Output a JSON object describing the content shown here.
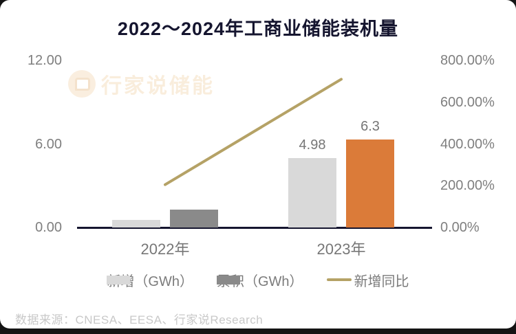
{
  "page": {
    "title": "2022～2024年工商业储能装机量",
    "watermark": "行家说储能",
    "source": "数据来源：CNESA、EESA、行家说Research"
  },
  "colors": {
    "title": "#15152F",
    "axis_line": "#15152F",
    "axis_text": "#7F7F7F",
    "bar_new": "#D9D9D9",
    "bar_cumulative": "#8A8A8A",
    "bar_cumulative_highlight": "#DB7B39",
    "growth_line": "#B5A266",
    "bar_value_text": "#767676",
    "source_text": "#C8C8C8",
    "watermark_text": "#F9EDDC",
    "card_background": "#FFFFFF",
    "page_background": "#141414"
  },
  "chart_data": {
    "type": "bar",
    "subtype": "grouped bars + line on secondary axis",
    "title": "2022～2024年工商业储能装机量",
    "categories": [
      "2022年",
      "2023年"
    ],
    "series": [
      {
        "key": "new",
        "name": "新增（GWh）",
        "type": "bar",
        "axis": "left",
        "values": [
          0.55,
          4.98
        ],
        "labels": [
          null,
          "4.98"
        ],
        "color": "#D9D9D9"
      },
      {
        "key": "cumulative",
        "name": "累积（GWh）",
        "type": "bar",
        "axis": "left",
        "values": [
          1.3,
          6.3
        ],
        "labels": [
          null,
          "6.3"
        ],
        "colors": [
          "#8A8A8A",
          "#DB7B39"
        ]
      },
      {
        "key": "growth",
        "name": "新增同比",
        "type": "line",
        "axis": "right",
        "values_pct": [
          205,
          710
        ],
        "labels": [
          null,
          null
        ],
        "color": "#B5A266"
      }
    ],
    "left_axis": {
      "min": 0,
      "max": 12,
      "ticks": [
        "12.00",
        "6.00",
        "0.00"
      ]
    },
    "right_axis": {
      "min": 0,
      "max": 800,
      "ticks": [
        "800.00%",
        "600.00%",
        "400.00%",
        "200.00%",
        "0.00%"
      ]
    },
    "grid": false,
    "legend_position": "bottom"
  },
  "legend": [
    {
      "label": "新增（GWh）",
      "swatch": "bar",
      "color": "#D9D9D9"
    },
    {
      "label": "累积（GWh）",
      "swatch": "bar",
      "color": "#8A8A8A"
    },
    {
      "label": "新增同比",
      "swatch": "line",
      "color": "#B5A266"
    }
  ]
}
